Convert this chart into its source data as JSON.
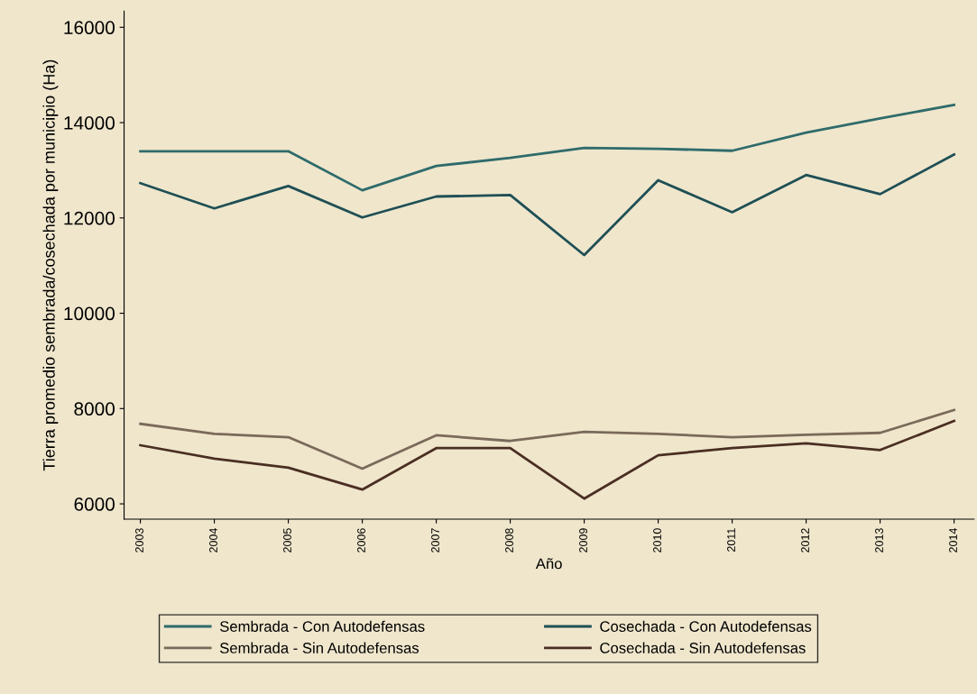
{
  "chart_data": {
    "type": "line",
    "xlabel": "Año",
    "ylabel": "Tierra promedio sembrada/cosechada por municipio (Ha)",
    "x": [
      2003,
      2004,
      2005,
      2006,
      2007,
      2008,
      2009,
      2010,
      2011,
      2012,
      2013,
      2014
    ],
    "series": [
      {
        "name": "Sembrada - Con Autodefensas",
        "color": "#2f6b6b",
        "values": [
          13400,
          13400,
          13400,
          12580,
          13090,
          13260,
          13470,
          13450,
          13410,
          13790,
          14090,
          14370
        ]
      },
      {
        "name": "Sembrada - Sin Autodefensas",
        "color": "#7a6a5a",
        "values": [
          7680,
          7470,
          7400,
          6740,
          7440,
          7320,
          7510,
          7470,
          7400,
          7450,
          7490,
          7970
        ]
      },
      {
        "name": "Cosechada - Con Autodefensas",
        "color": "#1f4f55",
        "values": [
          12730,
          12200,
          12670,
          12010,
          12450,
          12480,
          11220,
          12790,
          12120,
          12900,
          12500,
          13330
        ]
      },
      {
        "name": "Cosechada - Sin Autodefensas",
        "color": "#4a2e22",
        "values": [
          7230,
          6950,
          6760,
          6300,
          7170,
          7170,
          6110,
          7020,
          7170,
          7270,
          7130,
          7740
        ]
      }
    ],
    "xlim": [
      2002.78,
      2014.27
    ],
    "ylim": [
      5680,
      16340
    ],
    "xticks": [
      2003,
      2004,
      2005,
      2006,
      2007,
      2008,
      2009,
      2010,
      2011,
      2012,
      2013,
      2014
    ],
    "yticks": [
      6000,
      8000,
      10000,
      12000,
      14000,
      16000
    ],
    "grid": false,
    "legend": "bottom",
    "marker": "none",
    "line_style": "solid"
  }
}
